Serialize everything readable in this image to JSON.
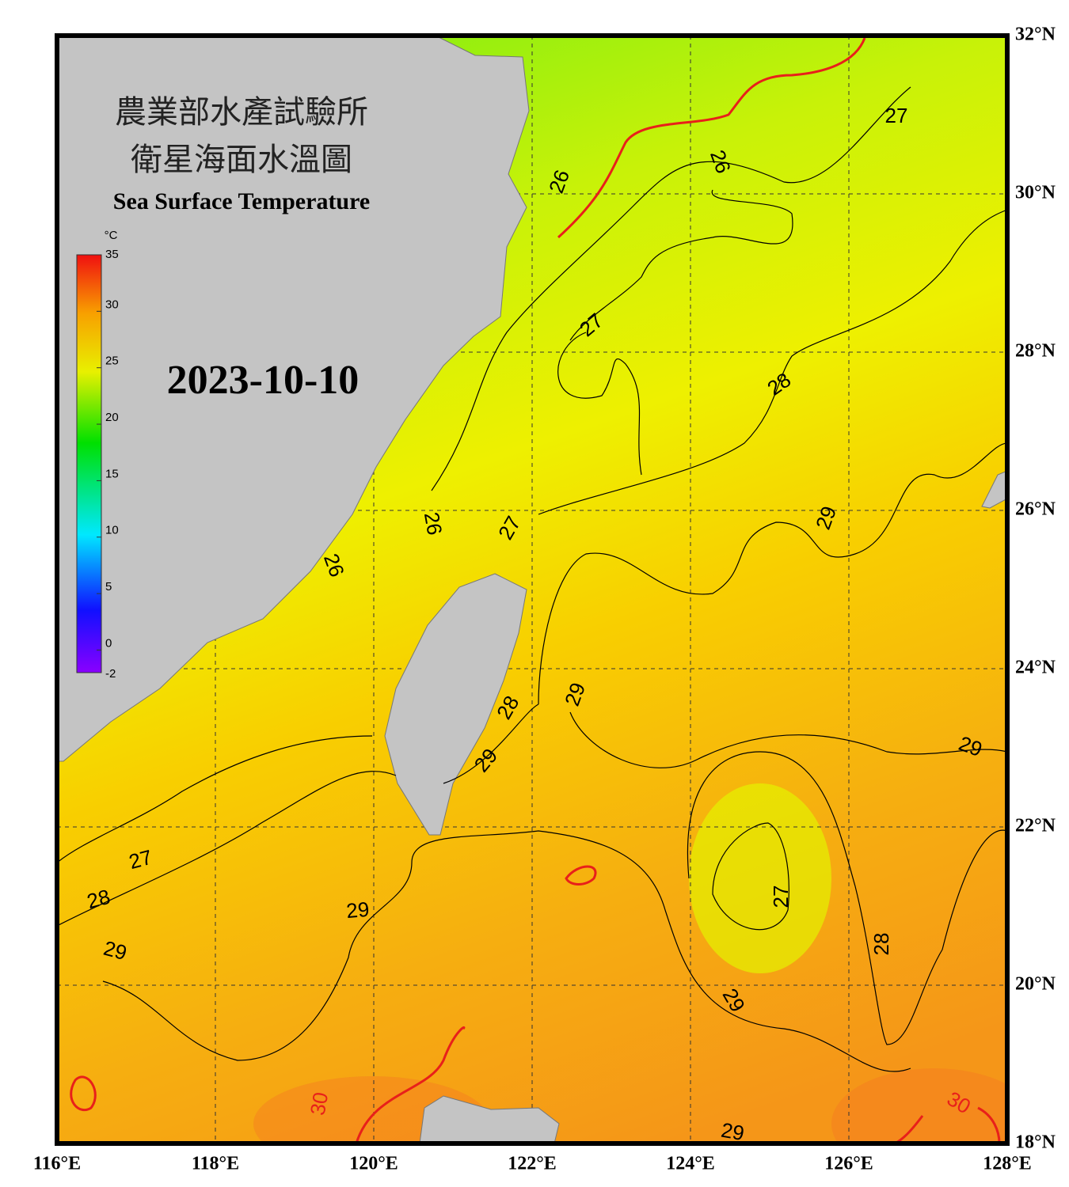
{
  "header": {
    "title_lines": [
      "農業部水產試驗所",
      "衛星海面水溫圖"
    ],
    "subtitle": "Sea Surface Temperature",
    "date": "2023-10-10"
  },
  "colorbar": {
    "unit": "°C",
    "range": [
      -2,
      35
    ],
    "ticks": [
      35,
      30,
      25,
      20,
      15,
      10,
      5,
      0,
      -2
    ]
  },
  "map": {
    "lon_ticks": [
      {
        "value": 116,
        "label": "116°E"
      },
      {
        "value": 118,
        "label": "118°E"
      },
      {
        "value": 120,
        "label": "120°E"
      },
      {
        "value": 122,
        "label": "122°E"
      },
      {
        "value": 124,
        "label": "124°E"
      },
      {
        "value": 126,
        "label": "126°E"
      },
      {
        "value": 128,
        "label": "128°E"
      }
    ],
    "lat_ticks": [
      {
        "value": 32,
        "label": "32°N"
      },
      {
        "value": 30,
        "label": "30°N"
      },
      {
        "value": 28,
        "label": "28°N"
      },
      {
        "value": 26,
        "label": "26°N"
      },
      {
        "value": 24,
        "label": "24°N"
      },
      {
        "value": 22,
        "label": "22°N"
      },
      {
        "value": 20,
        "label": "20°N"
      },
      {
        "value": 18,
        "label": "18°N"
      }
    ],
    "contour_labels": [
      26,
      26,
      27,
      27,
      28,
      26,
      27,
      26,
      29,
      28,
      29,
      29,
      29,
      27,
      28,
      29,
      27,
      28,
      29,
      29,
      30,
      30,
      29
    ]
  }
}
